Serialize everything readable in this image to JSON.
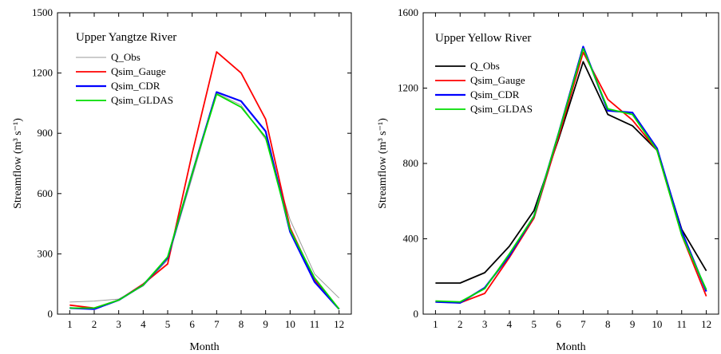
{
  "chart_data": [
    {
      "type": "line",
      "title": "Upper Yangtze River",
      "xlabel": "Month",
      "ylabel": "Streamflow (m³ s⁻¹)",
      "x": [
        1,
        2,
        3,
        4,
        5,
        6,
        7,
        8,
        9,
        10,
        11,
        12
      ],
      "xticks": [
        "1",
        "2",
        "3",
        "4",
        "5",
        "6",
        "7",
        "8",
        "9",
        "10",
        "11",
        "12"
      ],
      "ylim": [
        0,
        1500
      ],
      "yticks": [
        "0",
        "300",
        "600",
        "900",
        "1200",
        "1500"
      ],
      "legend_position": "top-left",
      "series": [
        {
          "name": "Q_Obs",
          "color": "#9a9a9a",
          "values": [
            60,
            65,
            75,
            140,
            270,
            680,
            1100,
            1040,
            870,
            470,
            200,
            80
          ]
        },
        {
          "name": "Qsim_Gauge",
          "color": "#ff0000",
          "values": [
            45,
            30,
            70,
            150,
            250,
            800,
            1305,
            1200,
            970,
            430,
            170,
            25
          ]
        },
        {
          "name": "Qsim_CDR",
          "color": "#0000ff",
          "values": [
            30,
            25,
            70,
            145,
            280,
            700,
            1105,
            1060,
            910,
            410,
            160,
            25
          ]
        },
        {
          "name": "Qsim_GLDAS",
          "color": "#00dd00",
          "values": [
            30,
            30,
            70,
            145,
            285,
            700,
            1095,
            1030,
            880,
            420,
            180,
            25
          ]
        }
      ]
    },
    {
      "type": "line",
      "title": "Upper Yellow River",
      "xlabel": "Month",
      "ylabel": "Streamflow (m³ s⁻¹)",
      "x": [
        1,
        2,
        3,
        4,
        5,
        6,
        7,
        8,
        9,
        10,
        11,
        12
      ],
      "xticks": [
        "1",
        "2",
        "3",
        "4",
        "5",
        "6",
        "7",
        "8",
        "9",
        "10",
        "11",
        "12"
      ],
      "ylim": [
        0,
        1600
      ],
      "yticks": [
        "0",
        "400",
        "800",
        "1200",
        "1600"
      ],
      "legend_position": "top-left",
      "series": [
        {
          "name": "Q_Obs",
          "color": "#000000",
          "values": [
            165,
            165,
            220,
            360,
            550,
            930,
            1340,
            1060,
            1000,
            870,
            450,
            230
          ]
        },
        {
          "name": "Qsim_Gauge",
          "color": "#ff0000",
          "values": [
            65,
            60,
            110,
            300,
            510,
            940,
            1390,
            1140,
            1030,
            870,
            420,
            95
          ]
        },
        {
          "name": "Qsim_CDR",
          "color": "#0000ff",
          "values": [
            65,
            60,
            140,
            310,
            520,
            960,
            1420,
            1080,
            1070,
            880,
            440,
            120
          ]
        },
        {
          "name": "Qsim_GLDAS",
          "color": "#00dd00",
          "values": [
            70,
            65,
            135,
            320,
            520,
            960,
            1410,
            1090,
            1060,
            870,
            420,
            130
          ]
        }
      ]
    }
  ]
}
